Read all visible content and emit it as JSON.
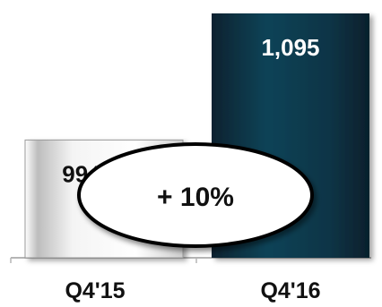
{
  "chart_data": {
    "type": "bar",
    "categories": [
      "Q4'15",
      "Q4'16"
    ],
    "values": [
      994,
      1095
    ],
    "data_labels": [
      "994",
      "1,095"
    ],
    "ylim": [
      900,
      1100
    ],
    "grid": false,
    "legend": "none",
    "annotation": "+ 10%",
    "colors": {
      "bar_1": "#e6e6e6",
      "bar_2": "#0d3a4e",
      "label_dark": "#111111",
      "label_light": "#ffffff",
      "axis": "#b5b5b5"
    }
  }
}
